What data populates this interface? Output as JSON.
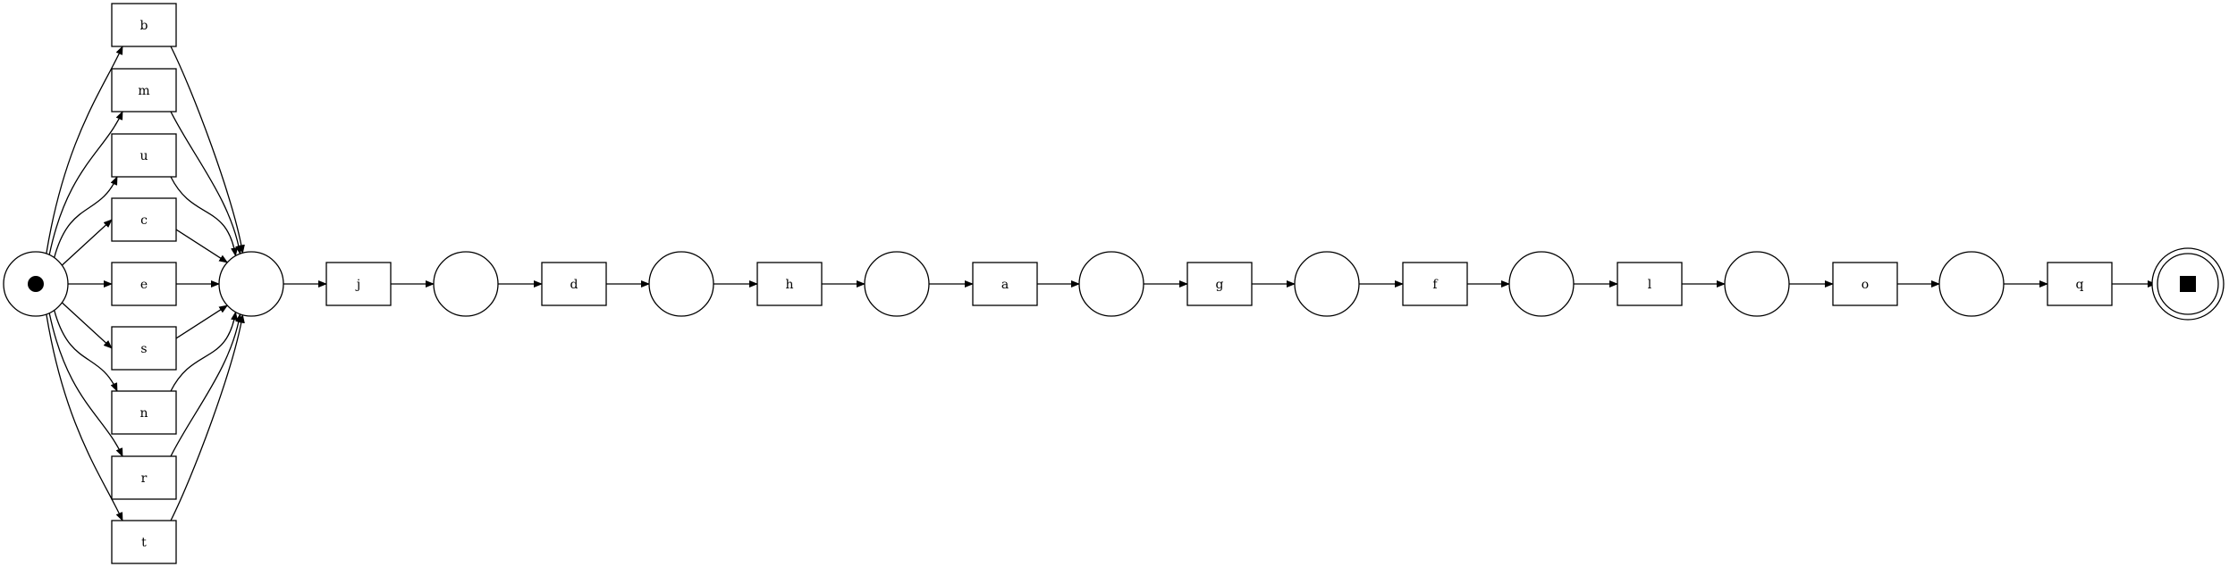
{
  "diagram": {
    "type": "petri-net",
    "colors": {
      "stroke": "#000000",
      "fill": "#ffffff",
      "token": "#000000"
    },
    "source_place": {
      "token": true
    },
    "sink_place": {
      "marker": "square"
    },
    "parallel_transitions": [
      "b",
      "m",
      "u",
      "c",
      "e",
      "s",
      "n",
      "r",
      "t"
    ],
    "chain_transitions": [
      "j",
      "d",
      "h",
      "a",
      "g",
      "f",
      "l",
      "o",
      "q"
    ]
  }
}
